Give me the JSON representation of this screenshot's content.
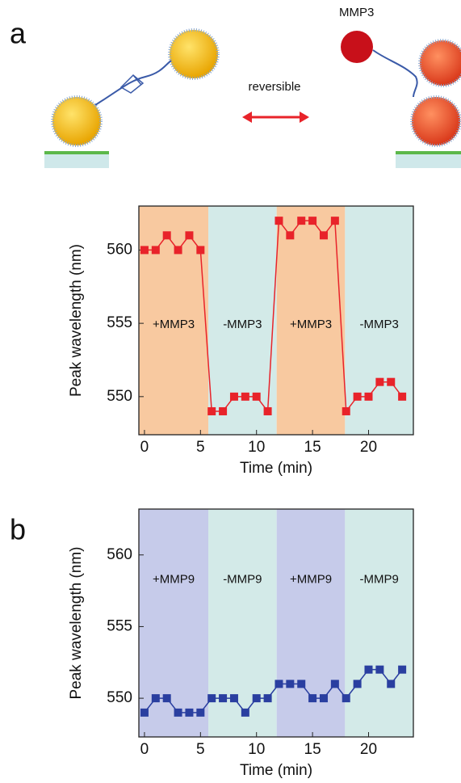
{
  "panels": [
    "a",
    "b"
  ],
  "schematic": {
    "enzyme_label": "MMP3",
    "arrow_label": "reversible"
  },
  "chart_data": [
    {
      "type": "line",
      "x_label": "Time (min)",
      "y_label": "Peak wavelength (nm)",
      "x": [
        0,
        1,
        2,
        3,
        4,
        5,
        6,
        7,
        8,
        9,
        10,
        11,
        12,
        13,
        14,
        15,
        16,
        17,
        18,
        19,
        20,
        21,
        22,
        23
      ],
      "series": [
        {
          "color": "#e8232a",
          "marker": "square",
          "values": [
            560,
            560,
            561,
            560,
            561,
            560,
            549,
            549,
            550,
            550,
            550,
            549,
            562,
            561,
            562,
            562,
            561,
            562,
            549,
            550,
            550,
            551,
            551,
            550
          ]
        }
      ],
      "regions": [
        {
          "label": "+MMP3",
          "start": -0.5,
          "end": 5.7,
          "color": "#f8c9a0"
        },
        {
          "label": "-MMP3",
          "start": 5.7,
          "end": 11.8,
          "color": "#d3eae8"
        },
        {
          "label": "+MMP3",
          "start": 11.8,
          "end": 17.9,
          "color": "#f8c9a0"
        },
        {
          "label": "-MMP3",
          "start": 17.9,
          "end": 24,
          "color": "#d3eae8"
        }
      ],
      "xlim": [
        -0.5,
        24
      ],
      "ylim": [
        547.4,
        563
      ],
      "xticks": [
        0,
        5,
        10,
        15,
        20
      ],
      "yticks": [
        550,
        555,
        560
      ]
    },
    {
      "type": "line",
      "x_label": "Time (min)",
      "y_label": "Peak wavelength (nm)",
      "x": [
        0,
        1,
        2,
        3,
        4,
        5,
        6,
        7,
        8,
        9,
        10,
        11,
        12,
        13,
        14,
        15,
        16,
        17,
        18,
        19,
        20,
        21,
        22,
        23
      ],
      "series": [
        {
          "color": "#2a3fa0",
          "marker": "square",
          "values": [
            549,
            550,
            550,
            549,
            549,
            549,
            550,
            550,
            550,
            549,
            550,
            550,
            551,
            551,
            551,
            550,
            550,
            551,
            550,
            551,
            552,
            552,
            551,
            552
          ]
        }
      ],
      "regions": [
        {
          "label": "+MMP9",
          "start": -0.5,
          "end": 5.7,
          "color": "#c6cbea"
        },
        {
          "label": "-MMP9",
          "start": 5.7,
          "end": 11.8,
          "color": "#d3eae8"
        },
        {
          "label": "+MMP9",
          "start": 11.8,
          "end": 17.9,
          "color": "#c6cbea"
        },
        {
          "label": "-MMP9",
          "start": 17.9,
          "end": 24,
          "color": "#d3eae8"
        }
      ],
      "xlim": [
        -0.5,
        24
      ],
      "ylim": [
        547.3,
        563.2
      ],
      "xticks": [
        0,
        5,
        10,
        15,
        20
      ],
      "yticks": [
        550,
        555,
        560
      ]
    }
  ]
}
